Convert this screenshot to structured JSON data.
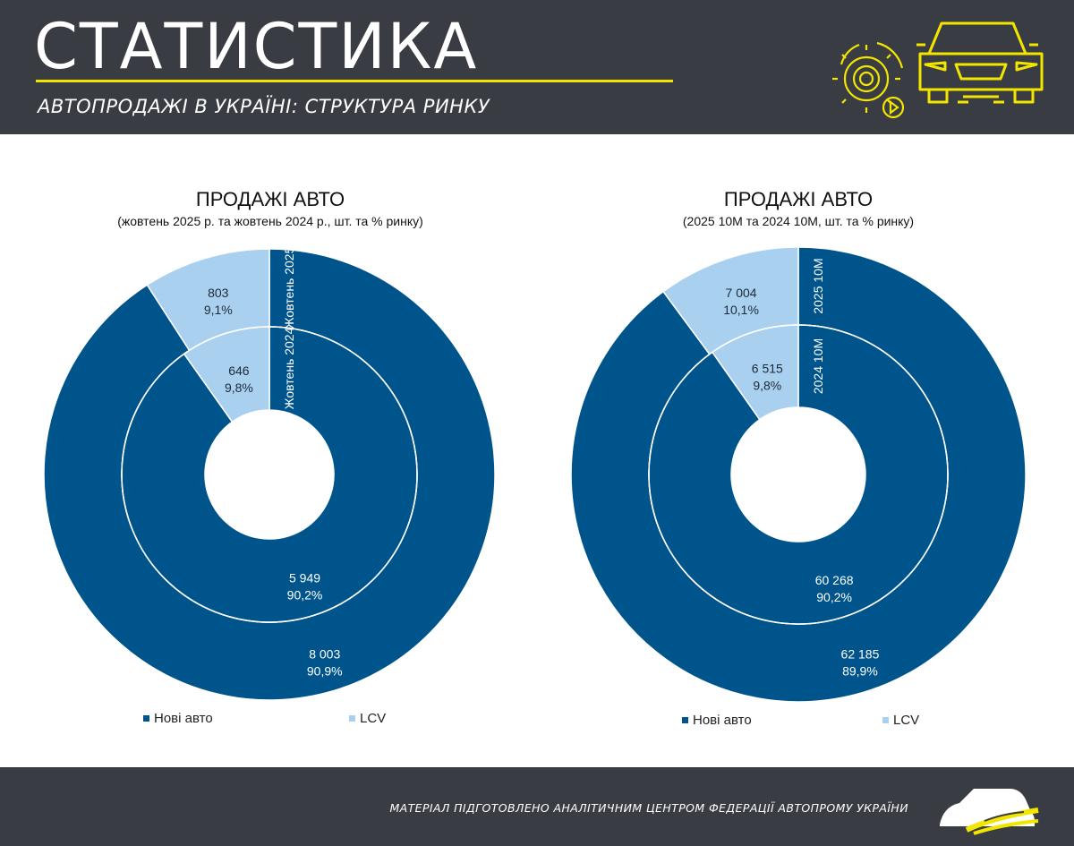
{
  "header": {
    "title": "СТАТИСТИКА",
    "subtitle": "АВТОПРОДАЖІ В УКРАЇНІ: СТРУКТУРА РИНКУ",
    "icons": [
      "gear-play-icon",
      "car-front-icon"
    ],
    "accent_color": "#f2e600",
    "background_color": "#3a3c43"
  },
  "legend": {
    "new_cars": "Нові авто",
    "lcv": "LCV"
  },
  "footer": {
    "note": "МАТЕРІАЛ ПІДГОТОВЛЕНО АНАЛІТИЧНИМ ЦЕНТРОМ ФЕДЕРАЦІЇ АВТОПРОМУ УКРАЇНИ",
    "icon": "car-silhouette-icon"
  },
  "colors": {
    "new_cars": "#00548c",
    "lcv": "#a9d0ef"
  },
  "chart_data": [
    {
      "type": "donut",
      "title": "ПРОДАЖІ АВТО",
      "subtitle": "(жовтень 2025 р. та жовтень 2024 р., шт. та % ринку)",
      "categories": [
        "Нові авто",
        "LCV"
      ],
      "rings": [
        {
          "name": "Жовтень 2025",
          "position": "outer",
          "values": [
            8003,
            803
          ],
          "value_labels": [
            "8 003",
            "803"
          ],
          "percent_labels": [
            "90,9%",
            "9,1%"
          ]
        },
        {
          "name": "Жовтень 2024",
          "position": "inner",
          "values": [
            5949,
            646
          ],
          "value_labels": [
            "5 949",
            "646"
          ],
          "percent_labels": [
            "90,2%",
            "9,8%"
          ]
        }
      ],
      "legend_position": "bottom"
    },
    {
      "type": "donut",
      "title": "ПРОДАЖІ АВТО",
      "subtitle": "(2025 10М та 2024 10М, шт. та % ринку)",
      "categories": [
        "Нові авто",
        "LCV"
      ],
      "rings": [
        {
          "name": "2025 10М",
          "position": "outer",
          "values": [
            62185,
            7004
          ],
          "value_labels": [
            "62 185",
            "7 004"
          ],
          "percent_labels": [
            "89,9%",
            "10,1%"
          ]
        },
        {
          "name": "2024 10М",
          "position": "inner",
          "values": [
            60268,
            6515
          ],
          "value_labels": [
            "60 268",
            "6 515"
          ],
          "percent_labels": [
            "90,2%",
            "9,8%"
          ]
        }
      ],
      "legend_position": "bottom"
    }
  ]
}
